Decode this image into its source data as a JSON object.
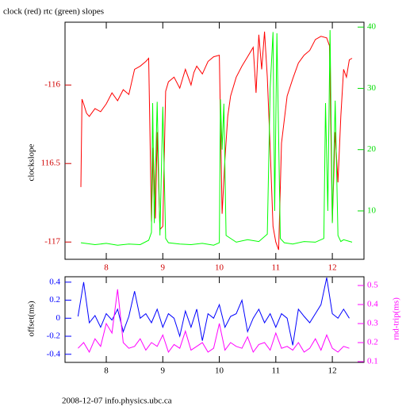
{
  "chart_data": [
    {
      "type": "line",
      "title": "clock (red) rtc (green) slopes",
      "y_label": "clockslope",
      "xlim": [
        7.27,
        12.56
      ],
      "xticks": [
        8,
        9,
        10,
        11,
        12
      ],
      "ylim": [
        -117.11,
        -115.6
      ],
      "yticks": [
        -116,
        {
          "value": -116.5,
          "label": "116.5"
        },
        -117
      ],
      "y2lim": [
        2.1,
        40.8
      ],
      "y2ticks": [
        10,
        20,
        30,
        40
      ],
      "series": [
        {
          "color": "#ff0000",
          "x": [
            7.55,
            7.57,
            7.6,
            7.65,
            7.7,
            7.8,
            7.9,
            8.0,
            8.1,
            8.2,
            8.3,
            8.4,
            8.5,
            8.6,
            8.7,
            8.75,
            8.8,
            8.83,
            8.87,
            8.9,
            8.95,
            9.0,
            9.05,
            9.1,
            9.2,
            9.3,
            9.4,
            9.5,
            9.55,
            9.6,
            9.7,
            9.8,
            9.9,
            10.0,
            10.05,
            10.1,
            10.15,
            10.2,
            10.3,
            10.4,
            10.5,
            10.6,
            10.65,
            10.7,
            10.75,
            10.8,
            10.85,
            10.9,
            10.95,
            11.0,
            11.05,
            11.1,
            11.2,
            11.3,
            11.4,
            11.5,
            11.6,
            11.7,
            11.8,
            11.9,
            11.95,
            12.0,
            12.05,
            12.1,
            12.15,
            12.2,
            12.25,
            12.3,
            12.35
          ],
          "values": [
            -116.65,
            -116.09,
            -116.12,
            -116.18,
            -116.2,
            -116.15,
            -116.17,
            -116.12,
            -116.05,
            -116.1,
            -116.03,
            -116.06,
            -115.9,
            -115.88,
            -115.85,
            -115.83,
            -116.87,
            -116.4,
            -116.85,
            -116.3,
            -116.92,
            -116.9,
            -116.04,
            -115.98,
            -115.95,
            -116.02,
            -115.9,
            -116.0,
            -115.92,
            -115.88,
            -115.93,
            -115.85,
            -115.82,
            -115.81,
            -116.82,
            -116.47,
            -116.2,
            -116.07,
            -115.95,
            -115.88,
            -115.82,
            -115.76,
            -116.05,
            -115.68,
            -115.9,
            -115.66,
            -115.95,
            -116.4,
            -116.9,
            -117.0,
            -117.05,
            -116.37,
            -116.07,
            -115.96,
            -115.86,
            -115.81,
            -115.78,
            -115.71,
            -115.69,
            -115.7,
            -115.75,
            -116.87,
            -116.3,
            -116.62,
            -116.2,
            -115.9,
            -115.95,
            -115.84,
            -115.83
          ]
        },
        {
          "color": "#00ff00",
          "axis": "y2",
          "x": [
            7.55,
            7.8,
            8.0,
            8.2,
            8.4,
            8.6,
            8.75,
            8.8,
            8.82,
            8.85,
            8.9,
            8.95,
            9.0,
            9.05,
            9.1,
            9.3,
            9.5,
            9.7,
            9.9,
            10.0,
            10.02,
            10.05,
            10.08,
            10.12,
            10.3,
            10.5,
            10.7,
            10.85,
            10.9,
            10.95,
            10.98,
            11.02,
            11.08,
            11.15,
            11.3,
            11.5,
            11.7,
            11.85,
            11.88,
            11.92,
            11.96,
            12.0,
            12.05,
            12.1,
            12.15,
            12.2,
            12.35
          ],
          "values": [
            4.8,
            4.5,
            4.7,
            4.4,
            4.6,
            4.5,
            5.2,
            6.5,
            27.6,
            8,
            27.8,
            6,
            27,
            5.5,
            4.8,
            4.6,
            4.5,
            4.7,
            4.4,
            4.8,
            28.2,
            20,
            27.5,
            6,
            4.9,
            5.3,
            5,
            6.2,
            30,
            39.2,
            10,
            39,
            5.5,
            4.8,
            4.6,
            5,
            4.9,
            5.5,
            27.6,
            10,
            39.5,
            8,
            28,
            6,
            5,
            5.3,
            4.9
          ]
        }
      ]
    },
    {
      "type": "line",
      "y_label": "offset(ms)",
      "y2_label": "rnd-trip(ms)",
      "xlim": [
        7.27,
        12.56
      ],
      "xticks": [
        8,
        9,
        10,
        11,
        12
      ],
      "ylim": [
        -0.49,
        0.46
      ],
      "yticks": [
        0.4,
        0.2,
        0,
        -0.2,
        -0.4
      ],
      "y2lim": [
        0.096,
        0.546
      ],
      "y2ticks": [
        0.1,
        0.2,
        0.3,
        0.4,
        0.5
      ],
      "series": [
        {
          "color": "#0000ff",
          "x": [
            7.5,
            7.6,
            7.7,
            7.8,
            7.9,
            8.0,
            8.1,
            8.2,
            8.3,
            8.4,
            8.5,
            8.6,
            8.7,
            8.8,
            8.9,
            9.0,
            9.1,
            9.2,
            9.3,
            9.4,
            9.5,
            9.6,
            9.7,
            9.8,
            9.9,
            10.0,
            10.1,
            10.2,
            10.3,
            10.4,
            10.5,
            10.6,
            10.7,
            10.8,
            10.9,
            11.0,
            11.1,
            11.2,
            11.3,
            11.4,
            11.5,
            11.6,
            11.7,
            11.8,
            11.9,
            12.0,
            12.1,
            12.2,
            12.3
          ],
          "values": [
            0.02,
            0.4,
            -0.05,
            0.03,
            -0.1,
            0.05,
            -0.02,
            0.1,
            -0.15,
            0.02,
            0.3,
            0.0,
            0.05,
            -0.05,
            0.1,
            -0.1,
            0.05,
            0.0,
            -0.2,
            0.08,
            -0.1,
            0.1,
            -0.25,
            0.05,
            0.0,
            0.15,
            -0.1,
            0.02,
            0.05,
            0.2,
            -0.15,
            0.0,
            0.1,
            -0.05,
            0.05,
            -0.1,
            0.05,
            0.0,
            -0.3,
            0.1,
            0.02,
            -0.05,
            0.05,
            0.15,
            0.45,
            0.05,
            0.0,
            0.1,
            0.0
          ]
        },
        {
          "color": "#ff00ff",
          "axis": "y2",
          "x": [
            7.5,
            7.6,
            7.7,
            7.8,
            7.9,
            8.0,
            8.1,
            8.2,
            8.3,
            8.4,
            8.5,
            8.6,
            8.7,
            8.8,
            8.9,
            9.0,
            9.1,
            9.2,
            9.3,
            9.4,
            9.5,
            9.6,
            9.7,
            9.8,
            9.9,
            10.0,
            10.1,
            10.2,
            10.3,
            10.4,
            10.5,
            10.6,
            10.7,
            10.8,
            10.9,
            11.0,
            11.1,
            11.2,
            11.3,
            11.4,
            11.5,
            11.6,
            11.7,
            11.8,
            11.9,
            12.0,
            12.1,
            12.2,
            12.3
          ],
          "values": [
            0.17,
            0.2,
            0.15,
            0.22,
            0.18,
            0.3,
            0.25,
            0.48,
            0.2,
            0.17,
            0.18,
            0.22,
            0.16,
            0.2,
            0.18,
            0.24,
            0.15,
            0.19,
            0.17,
            0.26,
            0.16,
            0.18,
            0.2,
            0.15,
            0.17,
            0.3,
            0.16,
            0.2,
            0.18,
            0.17,
            0.23,
            0.15,
            0.19,
            0.2,
            0.16,
            0.25,
            0.17,
            0.18,
            0.16,
            0.2,
            0.15,
            0.17,
            0.22,
            0.16,
            0.24,
            0.17,
            0.15,
            0.18,
            0.17
          ]
        }
      ]
    }
  ],
  "footer": "2008-12-07 info.physics.ubc.ca"
}
